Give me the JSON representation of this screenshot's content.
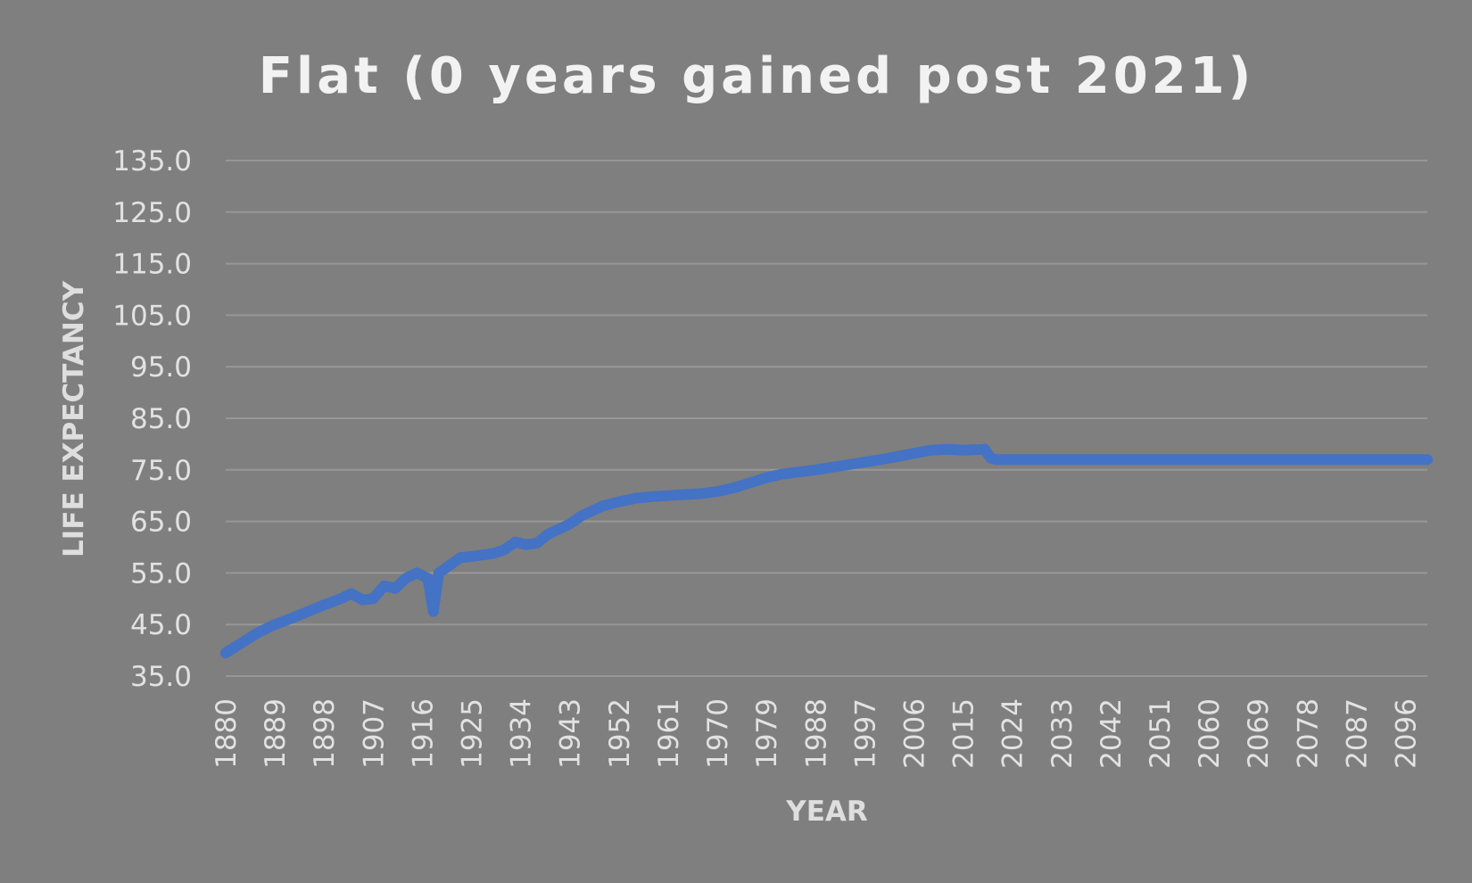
{
  "chart_data": {
    "type": "line",
    "title": "Flat (0 years gained post 2021)",
    "xlabel": "YEAR",
    "ylabel": "LIFE EXPECTANCY",
    "ylim": [
      35,
      135
    ],
    "xlim": [
      1880,
      2100
    ],
    "y_ticks": [
      "35.0",
      "45.0",
      "55.0",
      "65.0",
      "75.0",
      "85.0",
      "95.0",
      "105.0",
      "115.0",
      "125.0",
      "135.0"
    ],
    "x_ticks": [
      "1880",
      "1889",
      "1898",
      "1907",
      "1916",
      "1925",
      "1934",
      "1943",
      "1952",
      "1961",
      "1970",
      "1979",
      "1988",
      "1997",
      "2006",
      "2015",
      "2024",
      "2033",
      "2042",
      "2051",
      "2060",
      "2069",
      "2078",
      "2087",
      "2096"
    ],
    "grid": true,
    "line_color": "#4472c4",
    "series": [
      {
        "x": [
          1880,
          1883,
          1886,
          1889,
          1892,
          1895,
          1898,
          1901,
          1903,
          1905,
          1907,
          1909,
          1911,
          1913,
          1915,
          1917,
          1918,
          1919,
          1921,
          1923,
          1925,
          1927,
          1929,
          1931,
          1933,
          1935,
          1937,
          1939,
          1941,
          1943,
          1945,
          1947,
          1949,
          1952,
          1955,
          1958,
          1961,
          1964,
          1967,
          1970,
          1973,
          1976,
          1979,
          1982,
          1985,
          1988,
          1991,
          1994,
          1997,
          2000,
          2003,
          2006,
          2009,
          2012,
          2015,
          2019,
          2020,
          2021,
          2030,
          2040,
          2050,
          2060,
          2070,
          2080,
          2090,
          2100
        ],
        "values": [
          39.5,
          41.5,
          43.5,
          45.0,
          46.2,
          47.5,
          48.8,
          50.0,
          51.0,
          49.8,
          50.0,
          52.5,
          52.0,
          54.0,
          55.0,
          54.0,
          47.5,
          55.0,
          56.5,
          58.0,
          58.2,
          58.5,
          58.8,
          59.5,
          61.0,
          60.5,
          60.8,
          62.5,
          63.5,
          64.5,
          66.0,
          67.0,
          68.0,
          68.8,
          69.5,
          69.8,
          70.0,
          70.2,
          70.4,
          70.8,
          71.5,
          72.5,
          73.5,
          74.2,
          74.6,
          75.0,
          75.5,
          76.0,
          76.5,
          77.0,
          77.6,
          78.2,
          78.8,
          79.0,
          78.8,
          79.0,
          77.3,
          77.0,
          77.0,
          77.0,
          77.0,
          77.0,
          77.0,
          77.0,
          77.0,
          77.0
        ]
      }
    ]
  }
}
